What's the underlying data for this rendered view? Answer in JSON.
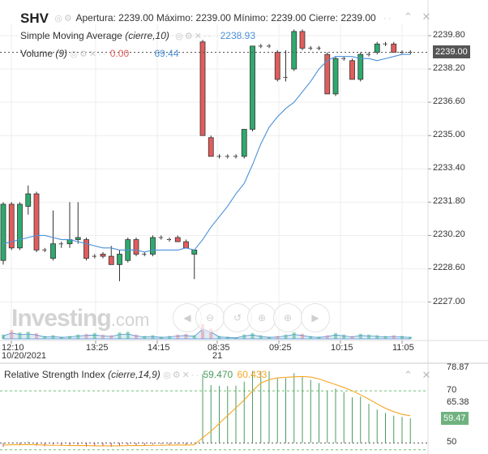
{
  "header": {
    "symbol": "SHV",
    "ohlc": "Apertura: 2239.00 Máximo: 2239.00 Mínimo: 2239.00 Cierre: 2239.00",
    "sma_label": "Simple Moving Average",
    "sma_params": "(cierre,10)",
    "sma_value": "2238.93",
    "volume_label": "Volume",
    "volume_params": "(9)",
    "volume_value_1": "0.00",
    "volume_value_2": "69.44",
    "rsi_label": "Relative Strength Index",
    "rsi_params": "(cierre,14,9)",
    "rsi_value_1": "59.470",
    "rsi_value_2": "60.433"
  },
  "price_axis": {
    "ticks": [
      "2239.80",
      "2238.20",
      "2236.60",
      "2235.00",
      "2233.40",
      "2231.80",
      "2230.20",
      "2228.60",
      "2227.00"
    ],
    "current_price": "2239.00"
  },
  "time_axis": {
    "ticks": [
      "12:10",
      "13:25",
      "14:15",
      "08:35",
      "09:25",
      "10:15",
      "11:05"
    ],
    "sub_labels": [
      "10/20/2021",
      "",
      "",
      "21",
      "",
      "",
      ""
    ]
  },
  "rsi_axis": {
    "ticks": [
      "78.87",
      "70",
      "65.38",
      "50"
    ],
    "current_value": "59.47"
  },
  "watermark": {
    "brand": "Investing",
    "suffix": ".com"
  },
  "nav_icons": [
    "chevron-left-icon",
    "zoom-out-icon",
    "reset-zoom-icon",
    "zoom-in-icon",
    "zoom-in-alt-icon",
    "chevron-right-icon"
  ],
  "colors": {
    "up": "#2eaa6f",
    "down": "#e25c5c",
    "sma": "#4a90d9",
    "rsi": "#555555",
    "rsi_signal": "#f5a623",
    "price_tag": "#555555",
    "rsi_tag": "#6fb27f"
  },
  "chart_data": {
    "type": "candlestick",
    "price_ylim": [
      2226.4,
      2240.6
    ],
    "candles": [
      {
        "o": 2229.0,
        "h": 2231.8,
        "l": 2228.8,
        "c": 2231.7
      },
      {
        "o": 2231.7,
        "h": 2231.8,
        "l": 2229.5,
        "c": 2229.6
      },
      {
        "o": 2229.6,
        "h": 2231.8,
        "l": 2229.5,
        "c": 2231.7
      },
      {
        "o": 2231.6,
        "h": 2232.6,
        "l": 2231.2,
        "c": 2232.2
      },
      {
        "o": 2232.2,
        "h": 2232.3,
        "l": 2229.4,
        "c": 2229.5
      },
      {
        "o": 2229.5,
        "h": 2229.6,
        "l": 2229.4,
        "c": 2229.5
      },
      {
        "o": 2229.1,
        "h": 2231.4,
        "l": 2229.0,
        "c": 2229.8
      },
      {
        "o": 2229.8,
        "h": 2229.9,
        "l": 2229.6,
        "c": 2229.8
      },
      {
        "o": 2229.8,
        "h": 2231.8,
        "l": 2229.6,
        "c": 2230.0
      },
      {
        "o": 2230.0,
        "h": 2231.8,
        "l": 2229.8,
        "c": 2230.1
      },
      {
        "o": 2230.0,
        "h": 2230.1,
        "l": 2229.0,
        "c": 2229.1
      },
      {
        "o": 2229.2,
        "h": 2229.3,
        "l": 2229.1,
        "c": 2229.2
      },
      {
        "o": 2229.3,
        "h": 2229.4,
        "l": 2229.1,
        "c": 2229.2
      },
      {
        "o": 2229.2,
        "h": 2229.7,
        "l": 2228.8,
        "c": 2228.8
      },
      {
        "o": 2228.8,
        "h": 2229.5,
        "l": 2228.0,
        "c": 2229.3
      },
      {
        "o": 2229.0,
        "h": 2230.1,
        "l": 2228.9,
        "c": 2230.0
      },
      {
        "o": 2230.0,
        "h": 2230.1,
        "l": 2229.2,
        "c": 2229.3
      },
      {
        "o": 2229.3,
        "h": 2229.4,
        "l": 2229.2,
        "c": 2229.3
      },
      {
        "o": 2229.3,
        "h": 2230.2,
        "l": 2229.2,
        "c": 2230.1
      },
      {
        "o": 2230.1,
        "h": 2230.2,
        "l": 2230.0,
        "c": 2230.1
      },
      {
        "o": 2230.0,
        "h": 2230.1,
        "l": 2229.9,
        "c": 2230.0
      },
      {
        "o": 2230.1,
        "h": 2230.2,
        "l": 2229.9,
        "c": 2229.9
      },
      {
        "o": 2229.9,
        "h": 2230.0,
        "l": 2229.6,
        "c": 2229.6
      },
      {
        "o": 2229.3,
        "h": 2229.5,
        "l": 2228.1,
        "c": 2229.5
      },
      {
        "o": 2239.5,
        "h": 2239.6,
        "l": 2235.0,
        "c": 2235.0
      },
      {
        "o": 2234.9,
        "h": 2235.0,
        "l": 2234.0,
        "c": 2234.0
      },
      {
        "o": 2234.0,
        "h": 2234.1,
        "l": 2233.9,
        "c": 2234.0
      },
      {
        "o": 2234.0,
        "h": 2234.1,
        "l": 2233.9,
        "c": 2234.0
      },
      {
        "o": 2234.0,
        "h": 2234.1,
        "l": 2233.9,
        "c": 2234.0
      },
      {
        "o": 2234.0,
        "h": 2235.3,
        "l": 2233.9,
        "c": 2235.3
      },
      {
        "o": 2235.3,
        "h": 2239.3,
        "l": 2235.2,
        "c": 2239.3
      },
      {
        "o": 2239.3,
        "h": 2239.4,
        "l": 2239.2,
        "c": 2239.3
      },
      {
        "o": 2239.3,
        "h": 2239.4,
        "l": 2239.2,
        "c": 2239.3
      },
      {
        "o": 2239.0,
        "h": 2239.1,
        "l": 2237.6,
        "c": 2237.7
      },
      {
        "o": 2237.8,
        "h": 2239.1,
        "l": 2237.6,
        "c": 2237.8
      },
      {
        "o": 2238.2,
        "h": 2240.1,
        "l": 2238.1,
        "c": 2240.0
      },
      {
        "o": 2240.0,
        "h": 2240.1,
        "l": 2239.1,
        "c": 2239.2
      },
      {
        "o": 2239.2,
        "h": 2239.3,
        "l": 2239.1,
        "c": 2239.2
      },
      {
        "o": 2239.2,
        "h": 2239.3,
        "l": 2239.1,
        "c": 2239.2
      },
      {
        "o": 2238.9,
        "h": 2239.0,
        "l": 2237.0,
        "c": 2237.0
      },
      {
        "o": 2237.0,
        "h": 2238.8,
        "l": 2236.9,
        "c": 2238.7
      },
      {
        "o": 2238.7,
        "h": 2238.8,
        "l": 2238.6,
        "c": 2238.7
      },
      {
        "o": 2238.6,
        "h": 2238.7,
        "l": 2237.7,
        "c": 2237.7
      },
      {
        "o": 2237.7,
        "h": 2239.0,
        "l": 2237.6,
        "c": 2238.9
      },
      {
        "o": 2238.9,
        "h": 2239.0,
        "l": 2238.8,
        "c": 2238.9
      },
      {
        "o": 2239.0,
        "h": 2239.5,
        "l": 2238.9,
        "c": 2239.4
      },
      {
        "o": 2239.4,
        "h": 2239.5,
        "l": 2239.3,
        "c": 2239.4
      },
      {
        "o": 2239.4,
        "h": 2239.5,
        "l": 2239.0,
        "c": 2239.0
      },
      {
        "o": 2239.0,
        "h": 2239.1,
        "l": 2238.9,
        "c": 2239.0
      },
      {
        "o": 2239.0,
        "h": 2239.1,
        "l": 2238.9,
        "c": 2239.0
      }
    ],
    "sma": [
      2229.8,
      2229.9,
      2230.0,
      2230.1,
      2230.2,
      2230.2,
      2230.1,
      2230.0,
      2230.0,
      2229.9,
      2229.8,
      2229.7,
      2229.6,
      2229.6,
      2229.5,
      2229.5,
      2229.5,
      2229.4,
      2229.5,
      2229.5,
      2229.5,
      2229.5,
      2229.6,
      2229.5,
      2230.0,
      2230.6,
      2231.1,
      2231.6,
      2232.2,
      2232.7,
      2233.6,
      2234.6,
      2235.4,
      2235.9,
      2236.3,
      2236.6,
      2237.1,
      2237.6,
      2238.2,
      2238.6,
      2238.8,
      2238.8,
      2238.8,
      2238.7,
      2238.7,
      2238.6,
      2238.7,
      2238.8,
      2238.9,
      2238.9
    ],
    "volume": [
      30,
      60,
      45,
      50,
      40,
      20,
      25,
      15,
      20,
      30,
      35,
      40,
      30,
      25,
      45,
      50,
      30,
      20,
      25,
      15,
      20,
      30,
      35,
      25,
      100,
      70,
      20,
      15,
      10,
      30,
      40,
      25,
      15,
      20,
      30,
      45,
      35,
      20,
      15,
      25,
      40,
      30,
      20,
      35,
      30,
      25,
      20,
      25,
      20,
      15
    ],
    "rsi_ylim": [
      47,
      80
    ],
    "rsi": [
      48.5,
      49.8,
      49.2,
      50.5,
      49.0,
      48.8,
      49.4,
      48.9,
      49.0,
      49.3,
      48.6,
      48.8,
      48.7,
      48.5,
      49.0,
      49.3,
      48.9,
      49.0,
      49.4,
      49.5,
      49.3,
      49.6,
      49.1,
      49.9,
      76.5,
      72.2,
      71.9,
      71.8,
      72.0,
      73.5,
      77.6,
      77.6,
      77.6,
      74.8,
      74.9,
      76.8,
      75.5,
      74.2,
      73.0,
      69.8,
      70.9,
      69.5,
      67.5,
      67.8,
      65.0,
      62.8,
      61.5,
      60.5,
      60.0,
      59.47
    ],
    "rsi_signal": [
      49.2,
      49.3,
      49.3,
      49.4,
      49.3,
      49.2,
      49.1,
      49.1,
      49.0,
      49.0,
      49.0,
      48.9,
      48.9,
      48.9,
      48.9,
      49.0,
      49.0,
      49.0,
      49.1,
      49.1,
      49.2,
      49.2,
      49.2,
      49.3,
      52.0,
      54.5,
      57.5,
      60.5,
      63.5,
      66.5,
      70.0,
      73.0,
      74.3,
      75.0,
      75.2,
      75.4,
      75.5,
      75.3,
      74.6,
      73.5,
      72.4,
      71.3,
      70.0,
      68.5,
      66.8,
      65.0,
      63.3,
      62.0,
      61.0,
      60.433
    ]
  }
}
